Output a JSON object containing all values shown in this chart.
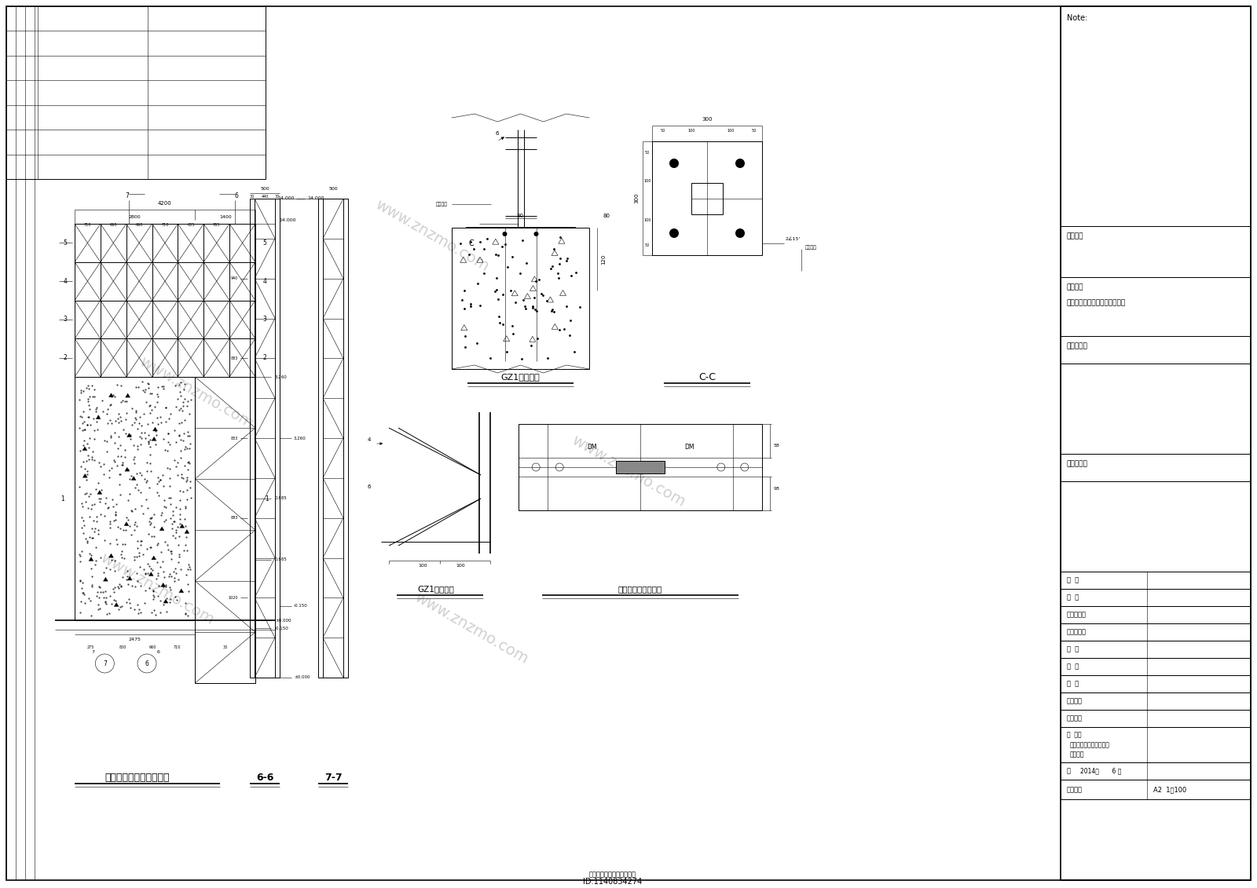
{
  "bg_color": "#ffffff",
  "line_color": "#000000",
  "note_text": "Note:",
  "project_owner": "建设单位",
  "project_name_label": "项目名称",
  "project_name": "国际商贸城肯德基汽车穿梭餐厅",
  "reg_stamp": "注册师印章",
  "drawing_stamp": "出图专用章",
  "review1": "审  定",
  "review2": "审  核",
  "eng_resp": "工程负责人",
  "spec_resp": "专业负责人",
  "check": "校  对",
  "design": "设  计",
  "draw": "制  图",
  "design_code": "设计号码",
  "sub_code": "子项号码",
  "drawing_name1": "广告牌背立面结构布置图",
  "drawing_name2": "节点大样",
  "date_val": "2014年       6 日",
  "scale_label": "图别比例",
  "scale_val": "A2  1：100",
  "id_text": "ID:1140834274",
  "bottom_note": "本图未加盖出图专用章无效",
  "title_main": "广告牌背立面结构布置图",
  "title_66": "6-6",
  "title_77": "7-7",
  "title_gz1_col": "GZ1柱脚节点",
  "title_cc": "C-C",
  "title_gz1_conn": "GZ1连接节点",
  "title_wrap": "外包铝塑板连接节点",
  "watermark": "www.znzmo.com"
}
